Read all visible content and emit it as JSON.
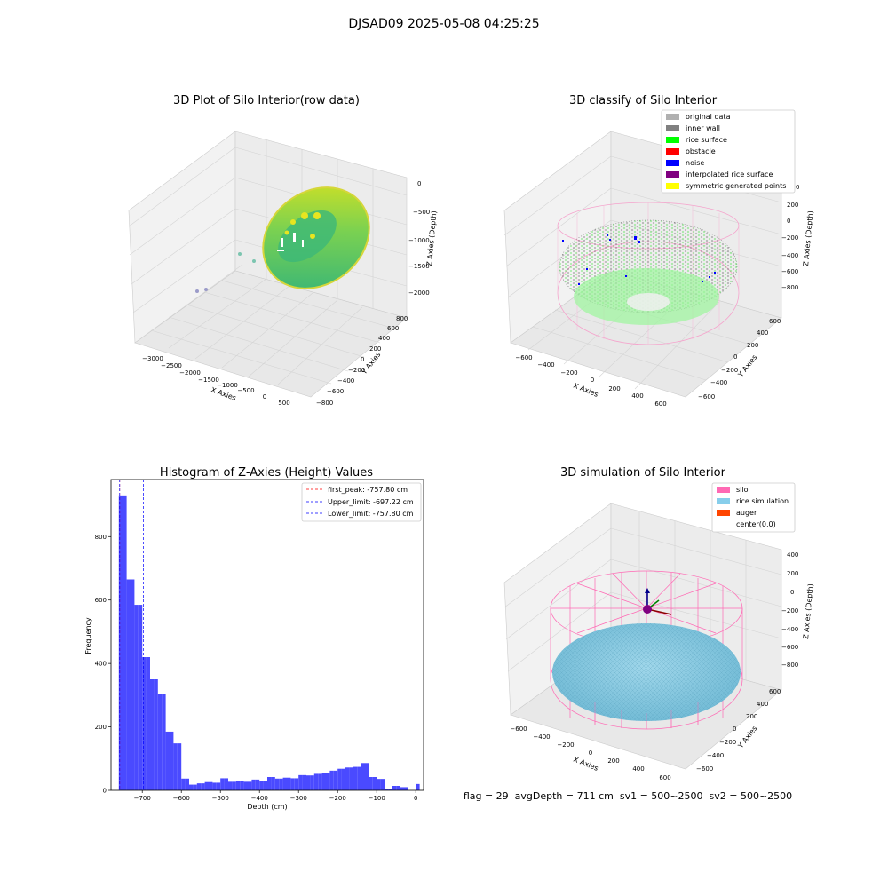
{
  "figure_title": "DJSAD09 2025-05-08 04:25:25",
  "colors": {
    "hist_bar": "#4a4aff",
    "first_peak_line": "#ff0000",
    "limit_line": "#0000ff",
    "viridis_dark": "#2bb07f",
    "viridis_light": "#e4e419",
    "silo_pink": "#ff69b4",
    "rice_sim": "#87ceeb",
    "auger": "#ff4500"
  },
  "chart_data": [
    {
      "type": "scatter3d",
      "title": "3D Plot of Silo Interior(row data)",
      "xlabel": "X Axies",
      "ylabel": "Y Axies",
      "zlabel": "Z Axies (Depth)",
      "xticks": [
        "−3000",
        "−2500",
        "−2000",
        "−1500",
        "−1000",
        "−500",
        "0",
        "500"
      ],
      "yticks": [
        "−800",
        "−600",
        "−400",
        "−200",
        "0",
        "200",
        "400",
        "600",
        "800"
      ],
      "zticks": [
        "0",
        "−500",
        "−1000",
        "−1500",
        "−2000"
      ],
      "xlim": [
        -3300,
        700
      ],
      "ylim": [
        -900,
        900
      ],
      "zlim": [
        -2200,
        100
      ],
      "colormap": "viridis"
    },
    {
      "type": "scatter3d",
      "title": "3D classify of Silo Interior",
      "xlabel": "X Axies",
      "ylabel": "Y Axies",
      "zlabel": "Z Axies (Depth)",
      "xticks": [
        "−600",
        "−400",
        "−200",
        "0",
        "200",
        "400",
        "600"
      ],
      "yticks": [
        "−600",
        "−400",
        "−200",
        "0",
        "200",
        "400",
        "600"
      ],
      "zticks": [
        "200",
        "0",
        "−200",
        "−400",
        "−600",
        "−800"
      ],
      "legend_position": "upper right",
      "legend": [
        {
          "label": "original data",
          "color": "#b0b0b0"
        },
        {
          "label": "inner wall",
          "color": "#808080"
        },
        {
          "label": "rice surface",
          "color": "#00ff00"
        },
        {
          "label": "obstacle",
          "color": "#ff0000"
        },
        {
          "label": "noise",
          "color": "#0000ff"
        },
        {
          "label": "interpolated rice surface",
          "color": "#800080"
        },
        {
          "label": "symmetric generated points",
          "color": "#ffff00"
        }
      ],
      "legend_overflow_text": "0"
    },
    {
      "type": "bar",
      "title": "Histogram of Z-Axies (Height) Values",
      "xlabel": "Depth (cm)",
      "ylabel": "Frequency",
      "xlim": [
        -780,
        20
      ],
      "ylim": [
        0,
        980
      ],
      "xticks": [
        -700,
        -600,
        -500,
        -400,
        -300,
        -200,
        -100,
        0
      ],
      "xtick_labels": [
        "−700",
        "−600",
        "−500",
        "−400",
        "−300",
        "−200",
        "−100",
        "0"
      ],
      "yticks": [
        0,
        200,
        400,
        600,
        800
      ],
      "bin_width": 10,
      "bins_start": [
        -760,
        -750,
        -740,
        -730,
        -720,
        -710,
        -700,
        -690,
        -680,
        -670,
        -660,
        -650,
        -640,
        -630,
        -620,
        -610,
        -600,
        -590,
        -580,
        -570,
        -560,
        -550,
        -540,
        -530,
        -520,
        -510,
        -500,
        -490,
        -480,
        -470,
        -460,
        -450,
        -440,
        -430,
        -420,
        -410,
        -400,
        -390,
        -380,
        -370,
        -360,
        -350,
        -340,
        -330,
        -320,
        -310,
        -300,
        -290,
        -280,
        -270,
        -260,
        -250,
        -240,
        -230,
        -220,
        -210,
        -200,
        -190,
        -180,
        -170,
        -160,
        -150,
        -140,
        -130,
        -120,
        -110,
        -100,
        -90,
        -80,
        -70,
        -60,
        -50,
        -40,
        -30,
        -20,
        -10,
        0
      ],
      "values": [
        930,
        930,
        665,
        665,
        585,
        585,
        420,
        420,
        350,
        350,
        305,
        305,
        185,
        185,
        148,
        148,
        37,
        37,
        18,
        18,
        22,
        22,
        26,
        26,
        24,
        24,
        38,
        38,
        27,
        27,
        30,
        30,
        27,
        27,
        34,
        34,
        30,
        30,
        42,
        42,
        37,
        37,
        40,
        40,
        38,
        38,
        48,
        48,
        47,
        47,
        52,
        52,
        54,
        54,
        62,
        62,
        68,
        68,
        72,
        72,
        74,
        74,
        86,
        86,
        42,
        42,
        36,
        36,
        4,
        4,
        14,
        14,
        10,
        10,
        0,
        0,
        20
      ],
      "vlines": [
        {
          "label": "first_peak: -757.80 cm",
          "x": -757.8,
          "color": "#ff0000"
        },
        {
          "label": "Upper_limit: -697.22 cm",
          "x": -697.22,
          "color": "#0000ff"
        },
        {
          "label": "Lower_limit: -757.80 cm",
          "x": -757.8,
          "color": "#0000ff"
        }
      ],
      "legend_position": "upper right"
    },
    {
      "type": "wireframe3d",
      "title": "3D simulation of Silo Interior",
      "xlabel": "X Axies",
      "ylabel": "Y Axies",
      "zlabel": "Z Axies (Depth)",
      "xticks": [
        "−600",
        "−400",
        "−200",
        "0",
        "200",
        "400",
        "600"
      ],
      "yticks": [
        "−600",
        "−400",
        "−200",
        "0",
        "200",
        "400",
        "600"
      ],
      "zticks": [
        "400",
        "200",
        "0",
        "−200",
        "−400",
        "−600",
        "−800"
      ],
      "legend_position": "upper right",
      "legend": [
        {
          "label": "silo",
          "color": "#ff69b4"
        },
        {
          "label": "rice simulation",
          "color": "#87ceeb"
        },
        {
          "label": "auger",
          "color": "#ff4500"
        },
        {
          "label": "center(0,0)",
          "color": "none"
        }
      ]
    }
  ],
  "footer_text": "flag = 29  avgDepth = 711 cm  sv1 = 500~2500  sv2 = 500~2500"
}
